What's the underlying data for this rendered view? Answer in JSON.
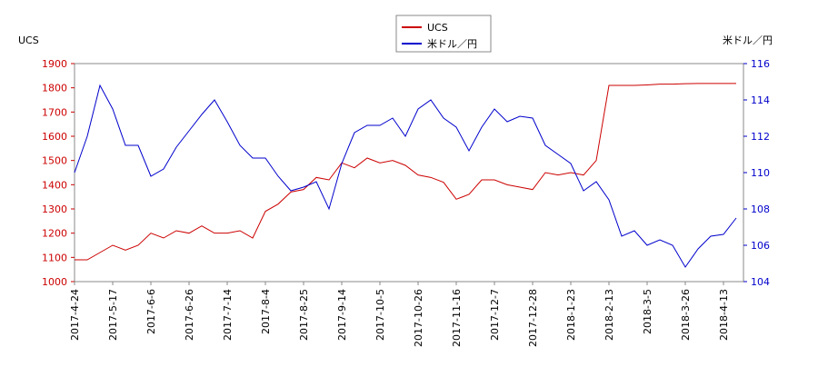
{
  "chart_data": {
    "type": "line",
    "legend": "top",
    "y_label": "UCS",
    "y2_label": "米ドル／円",
    "categories": [
      "2017-4-24",
      null,
      null,
      "2017-5-17",
      null,
      null,
      "2017-6-6",
      null,
      null,
      "2017-6-26",
      null,
      null,
      "2017-7-14",
      null,
      null,
      "2017-8-4",
      null,
      null,
      "2017-8-25",
      null,
      null,
      "2017-9-14",
      null,
      null,
      "2017-10-5",
      null,
      null,
      "2017-10-26",
      null,
      null,
      "2017-11-16",
      null,
      null,
      "2017-12-7",
      null,
      null,
      "2017-12-28",
      null,
      null,
      "2018-1-23",
      null,
      null,
      "2018-2-13",
      null,
      null,
      "2018-3-5",
      null,
      null,
      "2018-3-26",
      null,
      null,
      "2018-4-13",
      null
    ],
    "ylim": [
      1000,
      1900
    ],
    "yticks": [
      1000,
      1100,
      1200,
      1300,
      1400,
      1500,
      1600,
      1700,
      1800,
      1900
    ],
    "y2lim": [
      104,
      116
    ],
    "y2ticks": [
      104,
      106,
      108,
      110,
      112,
      114,
      116
    ],
    "series": [
      {
        "name": "UCS",
        "color": "#cc0000",
        "values": [
          1090,
          1090,
          1120,
          1150,
          1130,
          1150,
          1200,
          1180,
          1210,
          1200,
          1230,
          1200,
          1200,
          1210,
          1180,
          1290,
          1320,
          1370,
          1380,
          1430,
          1420,
          1490,
          1470,
          1510,
          1490,
          1500,
          1480,
          1440,
          1430,
          1410,
          1340,
          1360,
          1420,
          1420,
          1400,
          1390,
          1380,
          1450,
          1440,
          1450,
          1440,
          1500,
          1810,
          1810,
          1810,
          1812,
          1815,
          1815,
          1817,
          1818,
          1818,
          1818,
          1818
        ]
      },
      {
        "name": "米ドル／円",
        "color": "#0000cc",
        "axis": "y2",
        "values": [
          110,
          112,
          114.8,
          113.5,
          111.5,
          111.5,
          109.8,
          110.2,
          111.4,
          112.3,
          113.2,
          114,
          112.8,
          111.5,
          110.8,
          110.8,
          109.8,
          109,
          109.2,
          109.5,
          108,
          110.5,
          112.2,
          112.6,
          112.6,
          113,
          112,
          113.5,
          114,
          113,
          112.5,
          111.2,
          112.5,
          113.5,
          112.8,
          113.1,
          113,
          111.5,
          111,
          110.5,
          109,
          109.5,
          108.5,
          106.5,
          106.8,
          106,
          106.3,
          106,
          104.8,
          105.8,
          106.5,
          106.6,
          107.5
        ]
      }
    ]
  }
}
